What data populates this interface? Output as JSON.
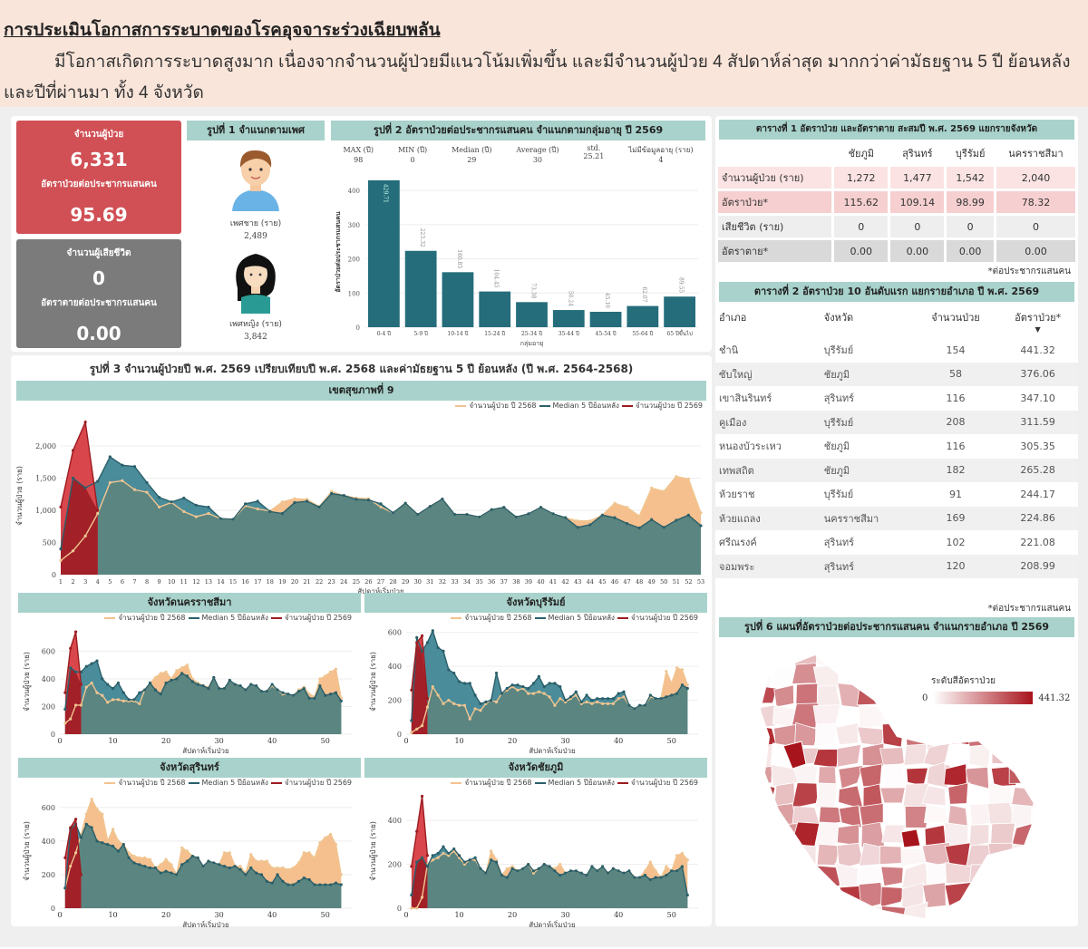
{
  "header": {
    "title": "การประเมินโอกาสการระบาดของโรคอุจจาระร่วงเฉียบพลัน",
    "body": "มีโอกาสเกิดการระบาดสูงมาก เนื่องจากจำนวนผู้ป่วยมีแนวโน้มเพิ่มขึ้น และมีจำนวนผู้ป่วย 4 สัปดาห์ล่าสุด มากกว่าค่ามัธยฐาน 5 ปี ย้อนหลัง และปีที่ผ่านมา ทั้ง 4 จังหวัด"
  },
  "kpi": {
    "cases_label": "จำนวนผู้ป่วย",
    "cases": "6,331",
    "rate_label": "อัตราป่วยต่อประชากรแสนคน",
    "rate": "95.69",
    "deaths_label": "จำนวนผู้เสียชีวิต",
    "deaths": "0",
    "death_rate_label": "อัตราตายต่อประชากรแสนคน",
    "death_rate": "0.00",
    "colors": {
      "cases": "#d05055",
      "deaths": "#7b7b7b"
    }
  },
  "fig1": {
    "title": "รูปที่ 1 จำแนกตามเพศ",
    "male_label": "เพศชาย (ราย)",
    "male": "2,489",
    "female_label": "เพศหญิง (ราย)",
    "female": "3,842",
    "icons": [
      "male-avatar-icon",
      "female-avatar-icon"
    ]
  },
  "fig2": {
    "title": "รูปที่ 2 อัตราป่วยต่อประชากรแสนคน จำแนกตามกลุ่มอายุ ปี 2569",
    "stats": [
      {
        "label": "MAX (ปี)",
        "value": "98"
      },
      {
        "label": "MIN (ปี)",
        "value": "0"
      },
      {
        "label": "Median (ปี)",
        "value": "29"
      },
      {
        "label": "Average (ปี)",
        "value": "30"
      },
      {
        "label": "std.",
        "value": "25.21"
      },
      {
        "label": "ไม่มีข้อมูลอายุ (ราย)",
        "value": "4"
      }
    ]
  },
  "chart_data": [
    {
      "type": "bar",
      "id": "age",
      "categories": [
        "0-4 ปี",
        "5-9 ปี",
        "10-14 ปี",
        "15-24 ปี",
        "25-34 ปี",
        "35-44 ปี",
        "45-54 ปี",
        "55-64 ปี",
        "65 ปีขึ้นไป"
      ],
      "values": [
        429.71,
        223.32,
        160.85,
        104.45,
        73.38,
        50.24,
        45.1,
        62.07,
        89.55
      ],
      "xlabel": "กลุ่มอายุ",
      "ylabel": "อัตราป่วยต่อประชากรแสนคน",
      "ylim": [
        0,
        440
      ],
      "yticks": [
        0,
        100,
        200,
        300,
        400
      ],
      "color": "#256d7b",
      "grid": true
    },
    {
      "type": "area",
      "id": "region",
      "title": "รูปที่ 3 จำนวนผู้ป่วยปี พ.ศ. 2569 เปรียบเทียบปี พ.ศ. 2568 และค่ามัธยฐาน 5 ปี ย้อนหลัง (ปี พ.ศ. 2564-2568)",
      "subtitle": "เขตสุขภาพที่ 9",
      "xlabel": "สัปดาห์เริ่มป่วย",
      "ylabel": "จำนวนผู้ป่วย (ราย)",
      "ylim": [
        0,
        2450
      ],
      "yticks": [
        0,
        500,
        1000,
        1500,
        2000
      ],
      "ytick_labels": [
        "0",
        "500",
        "1,000",
        "1,500",
        "2,000"
      ],
      "xticks": "1-53",
      "legend": "top-right",
      "series": [
        {
          "name": "จำนวนผู้ป่วย ปี 2568",
          "color": "#f3c28f",
          "values": [
            220,
            370,
            600,
            950,
            1430,
            1460,
            1320,
            1280,
            1050,
            1120,
            980,
            900,
            950,
            870,
            860,
            1070,
            1020,
            990,
            1130,
            1180,
            1170,
            1060,
            1290,
            1230,
            1190,
            1180,
            1050,
            960,
            1110,
            935,
            1060,
            1175,
            935,
            935,
            895,
            1010,
            1045,
            895,
            945,
            1045,
            945,
            885,
            835,
            835,
            925,
            1110,
            1045,
            910,
            1345,
            1295,
            1525,
            1485,
            960
          ]
        },
        {
          "name": "Median 5 ปีย้อนหลัง",
          "color": "#2a5f6a",
          "values": [
            400,
            1500,
            1350,
            1450,
            1830,
            1700,
            1680,
            1430,
            1200,
            1130,
            1190,
            1080,
            1050,
            870,
            860,
            1100,
            1140,
            980,
            950,
            1120,
            1140,
            1050,
            1260,
            1230,
            1170,
            1160,
            1100,
            960,
            1110,
            935,
            1060,
            1175,
            935,
            935,
            895,
            1010,
            1045,
            895,
            945,
            1045,
            945,
            885,
            735,
            775,
            925,
            885,
            795,
            725,
            855,
            735,
            845,
            925,
            760
          ]
        },
        {
          "name": "จำนวนผู้ป่วย ปี 2569",
          "color": "#9b1c20",
          "values": [
            1050,
            1930,
            2370,
            1000
          ]
        }
      ]
    },
    {
      "type": "area",
      "id": "nakhon",
      "subtitle": "จังหวัดนครราชสีมา",
      "xlabel": "สัปดาห์เริ่มป่วย",
      "ylabel": "จำนวนผู้ป่วย (ราย)",
      "ylim": [
        0,
        760
      ],
      "yticks": [
        0,
        200,
        400,
        600
      ],
      "xticks": [
        0,
        10,
        20,
        30,
        40,
        50
      ],
      "legend": "top-right",
      "series": [
        {
          "name": "จำนวนผู้ป่วย ปี 2568",
          "color": "#f3c28f",
          "values": [
            80,
            110,
            210,
            210,
            340,
            370,
            300,
            280,
            230,
            250,
            250,
            240,
            240,
            240,
            220,
            320,
            370,
            410,
            440,
            450,
            400,
            460,
            480,
            500,
            400,
            370,
            350,
            340,
            410,
            330,
            330,
            390,
            360,
            350,
            320,
            360,
            350,
            310,
            310,
            350,
            320,
            290,
            290,
            280,
            320,
            340,
            290,
            270,
            400,
            420,
            450,
            470,
            260
          ]
        },
        {
          "name": "Median 5 ปีย้อนหลัง",
          "color": "#2a5f6a",
          "values": [
            180,
            480,
            450,
            450,
            490,
            510,
            530,
            400,
            360,
            330,
            370,
            300,
            250,
            250,
            300,
            320,
            370,
            320,
            290,
            370,
            390,
            400,
            440,
            420,
            380,
            360,
            350,
            330,
            410,
            330,
            330,
            390,
            360,
            350,
            320,
            360,
            350,
            310,
            310,
            360,
            320,
            300,
            290,
            280,
            310,
            330,
            260,
            260,
            350,
            280,
            290,
            300,
            240
          ]
        },
        {
          "name": "จำนวนผู้ป่วย ปี 2569",
          "color": "#9b1c20",
          "values": [
            300,
            620,
            740,
            360
          ]
        }
      ]
    },
    {
      "type": "area",
      "id": "buriram",
      "subtitle": "จังหวัดบุรีรัมย์",
      "xlabel": "สัปดาห์เริ่มป่วย",
      "ylabel": "จำนวนผู้ป่วย (ราย)",
      "ylim": [
        0,
        620
      ],
      "yticks": [
        0,
        200,
        400,
        600
      ],
      "xticks": [
        0,
        10,
        20,
        30,
        40,
        50
      ],
      "legend": "top-right",
      "series": [
        {
          "name": "จำนวนผู้ป่วย ปี 2568",
          "color": "#f3c28f",
          "values": [
            10,
            30,
            50,
            160,
            280,
            230,
            180,
            200,
            180,
            170,
            170,
            90,
            150,
            140,
            180,
            200,
            190,
            240,
            260,
            280,
            260,
            270,
            240,
            240,
            250,
            240,
            220,
            170,
            210,
            190,
            210,
            230,
            180,
            190,
            180,
            190,
            180,
            180,
            180,
            210,
            220,
            170,
            150,
            170,
            170,
            220,
            210,
            210,
            370,
            300,
            390,
            380,
            290
          ]
        },
        {
          "name": "Median 5 ปีย้อนหลัง",
          "color": "#2a5f6a",
          "values": [
            80,
            570,
            490,
            540,
            610,
            510,
            490,
            380,
            360,
            310,
            300,
            300,
            230,
            180,
            190,
            200,
            360,
            240,
            270,
            290,
            290,
            280,
            270,
            300,
            340,
            280,
            300,
            300,
            280,
            200,
            220,
            250,
            190,
            230,
            200,
            210,
            210,
            210,
            210,
            240,
            250,
            170,
            150,
            170,
            170,
            230,
            210,
            210,
            220,
            230,
            240,
            290,
            270
          ]
        },
        {
          "name": "จำนวนผู้ป่วย ปี 2569",
          "color": "#9b1c20",
          "values": [
            260,
            540,
            580,
            210
          ]
        }
      ]
    },
    {
      "type": "area",
      "id": "surin",
      "subtitle": "จังหวัดสุรินทร์",
      "xlabel": "สัปดาห์เริ่มป่วย",
      "ylabel": "จำนวนผู้ป่วย (ราย)",
      "ylim": [
        0,
        680
      ],
      "yticks": [
        0,
        200,
        400,
        600
      ],
      "xticks": [
        0,
        10,
        20,
        30,
        40,
        50
      ],
      "legend": "top-right",
      "series": [
        {
          "name": "จำนวนผู้ป่วย ปี 2568",
          "color": "#f3c28f",
          "values": [
            120,
            250,
            330,
            440,
            560,
            650,
            590,
            560,
            400,
            470,
            400,
            380,
            330,
            310,
            300,
            300,
            290,
            240,
            260,
            290,
            260,
            200,
            360,
            340,
            310,
            300,
            250,
            280,
            270,
            260,
            330,
            330,
            250,
            250,
            210,
            320,
            280,
            280,
            280,
            240,
            240,
            240,
            230,
            240,
            270,
            330,
            330,
            300,
            390,
            420,
            440,
            380,
            200
          ]
        },
        {
          "name": "Median 5 ปีย้อนหลัง",
          "color": "#2a5f6a",
          "values": [
            120,
            470,
            500,
            420,
            500,
            480,
            400,
            390,
            380,
            370,
            340,
            380,
            300,
            270,
            260,
            250,
            240,
            240,
            210,
            220,
            210,
            200,
            260,
            280,
            310,
            300,
            250,
            280,
            270,
            260,
            250,
            240,
            250,
            230,
            200,
            240,
            210,
            200,
            160,
            150,
            200,
            160,
            140,
            140,
            160,
            180,
            170,
            140,
            140,
            140,
            140,
            150,
            140
          ]
        },
        {
          "name": "จำนวนผู้ป่วย ปี 2569",
          "color": "#9b1c20",
          "values": [
            300,
            480,
            530,
            200
          ]
        }
      ]
    },
    {
      "type": "area",
      "id": "chaiyaphum",
      "subtitle": "จังหวัดชัยภูมิ",
      "xlabel": "สัปดาห์เริ่มป่วย",
      "ylabel": "จำนวนผู้ป่วย (ราย)",
      "ylim": [
        0,
        520
      ],
      "yticks": [
        0,
        200,
        400
      ],
      "xticks": [
        0,
        10,
        20,
        30,
        40,
        50
      ],
      "legend": "top-right",
      "series": [
        {
          "name": "จำนวนผู้ป่วย ปี 2568",
          "color": "#f3c28f",
          "values": [
            0,
            0,
            50,
            200,
            220,
            230,
            250,
            240,
            260,
            230,
            200,
            220,
            220,
            180,
            160,
            260,
            220,
            150,
            180,
            190,
            170,
            180,
            200,
            160,
            180,
            200,
            190,
            180,
            200,
            160,
            170,
            170,
            160,
            150,
            190,
            170,
            190,
            160,
            180,
            170,
            160,
            170,
            140,
            140,
            170,
            210,
            170,
            140,
            190,
            170,
            240,
            250,
            220
          ]
        },
        {
          "name": "Median 5 ปีย้อนหลัง",
          "color": "#2a5f6a",
          "values": [
            60,
            210,
            230,
            190,
            240,
            250,
            280,
            250,
            270,
            240,
            210,
            220,
            230,
            180,
            160,
            220,
            210,
            150,
            140,
            180,
            170,
            180,
            200,
            170,
            180,
            200,
            190,
            170,
            150,
            160,
            170,
            170,
            160,
            150,
            190,
            170,
            190,
            160,
            180,
            170,
            160,
            170,
            140,
            140,
            150,
            130,
            140,
            140,
            150,
            170,
            170,
            190,
            60
          ]
        },
        {
          "name": "จำนวนผู้ป่วย ปี 2569",
          "color": "#9b1c20",
          "values": [
            190,
            350,
            510,
            240
          ]
        }
      ]
    }
  ],
  "table1": {
    "title": "ตารางที่ 1 อัตราป่วย และอัตราตาย สะสมปี พ.ศ. 2569 แยกรายจังหวัด",
    "columns": [
      "ชัยภูมิ",
      "สุรินทร์",
      "บุรีรัมย์",
      "นครราชสีมา"
    ],
    "rows": [
      {
        "label": "จำนวนผู้ป่วย (ราย)",
        "values": [
          "1,272",
          "1,477",
          "1,542",
          "2,040"
        ]
      },
      {
        "label": "อัตราป่วย*",
        "values": [
          "115.62",
          "109.14",
          "98.99",
          "78.32"
        ]
      },
      {
        "label": "เสียชีวิต (ราย)",
        "values": [
          "0",
          "0",
          "0",
          "0"
        ]
      },
      {
        "label": "อัตราตาย*",
        "values": [
          "0.00",
          "0.00",
          "0.00",
          "0.00"
        ]
      }
    ],
    "note": "*ต่อประชากรแสนคน"
  },
  "table2": {
    "title": "ตารางที่ 2 อัตราป่วย 10 อันดับแรก แยกรายอำเภอ ปี พ.ศ. 2569",
    "columns": [
      "อำเภอ",
      "จังหวัด",
      "จำนวนป่วย",
      "อัตราป่วย*"
    ],
    "sort_icon": "sort-desc-icon",
    "rows": [
      [
        "ชำนิ",
        "บุรีรัมย์",
        "154",
        "441.32"
      ],
      [
        "ซับใหญ่",
        "ชัยภูมิ",
        "58",
        "376.06"
      ],
      [
        "เขาสินรินทร์",
        "สุรินทร์",
        "116",
        "347.10"
      ],
      [
        "คูเมือง",
        "บุรีรัมย์",
        "208",
        "311.59"
      ],
      [
        "หนองบัวระเหว",
        "ชัยภูมิ",
        "116",
        "305.35"
      ],
      [
        "เทพสถิต",
        "ชัยภูมิ",
        "182",
        "265.28"
      ],
      [
        "ห้วยราช",
        "บุรีรัมย์",
        "91",
        "244.17"
      ],
      [
        "ห้วยแถลง",
        "นครราชสีมา",
        "169",
        "224.86"
      ],
      [
        "ศรีณรงค์",
        "สุรินทร์",
        "102",
        "221.08"
      ],
      [
        "จอมพระ",
        "สุรินทร์",
        "120",
        "208.99"
      ]
    ],
    "note": "*ต่อประชากรแสนคน"
  },
  "fig6": {
    "title": "รูปที่ 6 แผนที่อัตราป่วยต่อประชากรแสนคน จำแนกรายอำเภอ ปี 2569",
    "legend_title": "ระดับสีอัตราป่วย",
    "legend_min": "0",
    "legend_max": "441.32",
    "scale_colors": [
      "#ffffff",
      "#a8141c"
    ]
  }
}
